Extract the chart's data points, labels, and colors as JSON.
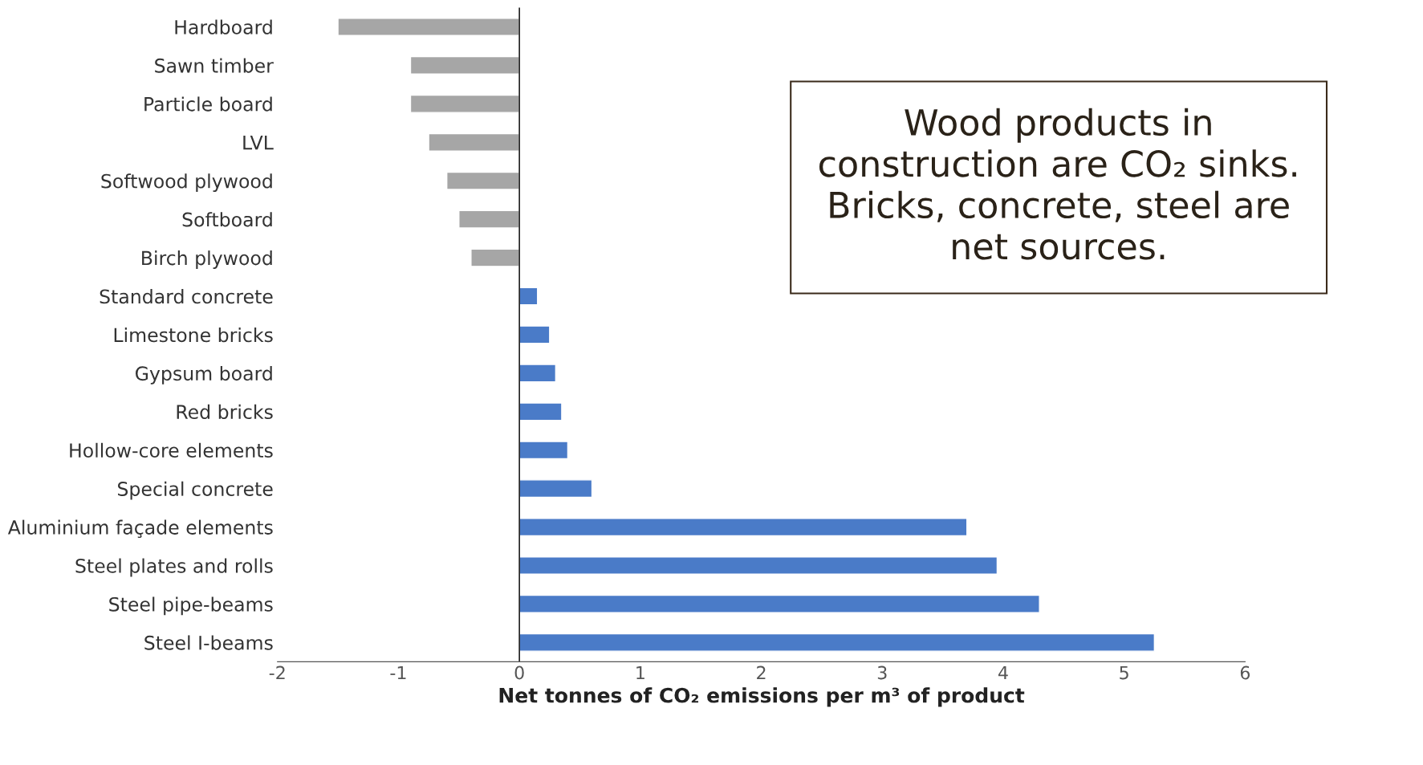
{
  "chart_data": {
    "type": "bar",
    "orientation": "horizontal",
    "categories": [
      "Hardboard",
      "Sawn timber",
      "Particle board",
      "LVL",
      "Softwood plywood",
      "Softboard",
      "Birch plywood",
      "Standard concrete",
      "Limestone bricks",
      "Gypsum board",
      "Red bricks",
      "Hollow-core elements",
      "Special concrete",
      "Aluminium façade elements",
      "Steel plates and rolls",
      "Steel pipe-beams",
      "Steel I-beams"
    ],
    "values": [
      -1.5,
      -0.9,
      -0.9,
      -0.75,
      -0.6,
      -0.5,
      -0.4,
      0.15,
      0.25,
      0.3,
      0.35,
      0.4,
      0.6,
      3.7,
      3.95,
      4.3,
      5.25
    ],
    "colors": [
      "#a6a6a6",
      "#a6a6a6",
      "#a6a6a6",
      "#a6a6a6",
      "#a6a6a6",
      "#a6a6a6",
      "#a6a6a6",
      "#4a7bc8",
      "#4a7bc8",
      "#4a7bc8",
      "#4a7bc8",
      "#4a7bc8",
      "#4a7bc8",
      "#4a7bc8",
      "#4a7bc8",
      "#4a7bc8",
      "#4a7bc8"
    ],
    "xlim": [
      -2,
      6
    ],
    "xticks": [
      -2,
      -1,
      0,
      1,
      2,
      3,
      4,
      5,
      6
    ],
    "xlabel": "Net tonnes of CO₂ emissions per m³ of product",
    "ref_lines": [
      {
        "axis": "x",
        "value": 0,
        "color": "#222222"
      }
    ],
    "annotations": [
      "Wood products in\nconstruction are CO₂ sinks.\nBricks, concrete, steel are\nnet sources."
    ],
    "grid": false,
    "legend": false
  }
}
